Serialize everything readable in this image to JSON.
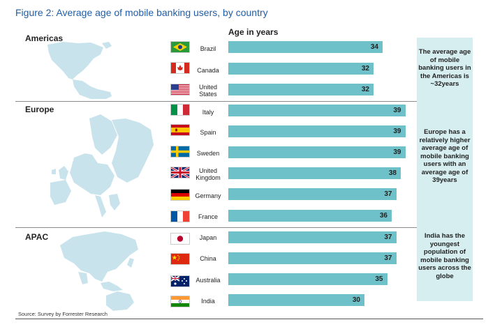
{
  "title": "Figure 2: Average age of mobile banking users, by country",
  "chart_data": {
    "type": "bar",
    "orientation": "horizontal",
    "xlabel": "Age in years",
    "xlim": [
      0,
      45
    ],
    "grid": false,
    "groups": [
      {
        "region": "Americas",
        "categories": [
          "Brazil",
          "Canada",
          "United States"
        ],
        "values": [
          34,
          32,
          32
        ]
      },
      {
        "region": "Europe",
        "categories": [
          "Italy",
          "Spain",
          "Sweden",
          "United Kingdom",
          "Germany",
          "France"
        ],
        "values": [
          39,
          39,
          39,
          38,
          37,
          36
        ]
      },
      {
        "region": "APAC",
        "categories": [
          "Japan",
          "China",
          "Australia",
          "India"
        ],
        "values": [
          37,
          37,
          35,
          30
        ]
      }
    ],
    "annotations": [
      "The average age of mobile banking users in the Americas is ~32years",
      "Europe has a relatively higher average age of mobile banking users with an average age of 39years",
      "India has the youngest population of mobile banking users across the globe"
    ],
    "source": "Source: Survey by Forrester Research"
  },
  "country_labels": {
    "Brazil": "Brazil",
    "Canada": "Canada",
    "United States": "United\nStates",
    "Italy": "Italy",
    "Spain": "Spain",
    "Sweden": "Sweden",
    "United Kingdom": "United\nKingdom",
    "Germany": "Germany",
    "France": "France",
    "Japan": "Japan",
    "China": "China",
    "Australia": "Australia",
    "India": "India"
  },
  "flags": [
    "flag-brazil-icon",
    "flag-canada-icon",
    "flag-usa-icon",
    "flag-italy-icon",
    "flag-spain-icon",
    "flag-sweden-icon",
    "flag-uk-icon",
    "flag-germany-icon",
    "flag-france-icon",
    "flag-japan-icon",
    "flag-china-icon",
    "flag-australia-icon",
    "flag-india-icon"
  ],
  "colors": {
    "bar": "#6fc1c9",
    "panel": "#d6eef0",
    "title": "#1f5fa8",
    "map": "#c9e3ec"
  }
}
